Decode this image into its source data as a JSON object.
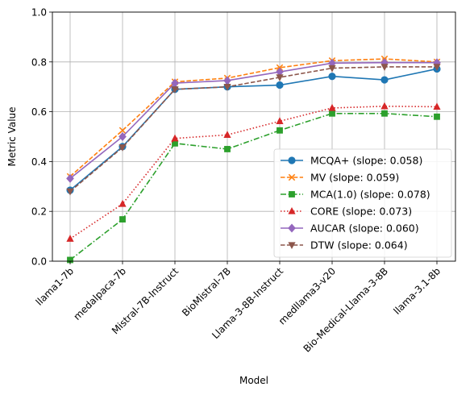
{
  "chart_data": {
    "type": "line",
    "xlabel": "Model",
    "ylabel": "Metric Value",
    "ylim": [
      0.0,
      1.0
    ],
    "yticks": [
      "0.0",
      "0.2",
      "0.4",
      "0.6",
      "0.8",
      "1.0"
    ],
    "grid": true,
    "legend_position": "bottom-right",
    "categories": [
      "llama1-7b",
      "medalpaca-7b",
      "Mistral-7B-Instruct",
      "BioMistral-7B",
      "Llama-3-8B-Instruct",
      "medllama3-v20",
      "Bio-Medical-Llama-3-8B",
      "llama-3.1-8b"
    ],
    "series": [
      {
        "name": "MCQA+ (slope: 0.058)",
        "color": "#1f77b4",
        "dash": "solid",
        "marker": "circle",
        "values": [
          0.285,
          0.46,
          0.69,
          0.7,
          0.707,
          0.742,
          0.728,
          0.772
        ]
      },
      {
        "name": "MV (slope: 0.059)",
        "color": "#ff7f0e",
        "dash": "dashed",
        "marker": "x",
        "values": [
          0.34,
          0.525,
          0.72,
          0.735,
          0.777,
          0.805,
          0.812,
          0.8
        ]
      },
      {
        "name": "MCA(1.0) (slope: 0.078)",
        "color": "#2ca02c",
        "dash": "dashdot",
        "marker": "square",
        "values": [
          0.005,
          0.168,
          0.473,
          0.45,
          0.525,
          0.593,
          0.593,
          0.58
        ]
      },
      {
        "name": "CORE (slope: 0.073)",
        "color": "#d62728",
        "dash": "dotted",
        "marker": "triangle-up",
        "values": [
          0.09,
          0.23,
          0.493,
          0.507,
          0.562,
          0.615,
          0.622,
          0.62
        ]
      },
      {
        "name": "AUCAR (slope: 0.060)",
        "color": "#9467bd",
        "dash": "solid",
        "marker": "diamond",
        "values": [
          0.332,
          0.5,
          0.715,
          0.725,
          0.76,
          0.795,
          0.797,
          0.797
        ]
      },
      {
        "name": "DTW (slope: 0.064)",
        "color": "#8c564b",
        "dash": "dashed",
        "marker": "triangle-down",
        "values": [
          0.28,
          0.457,
          0.69,
          0.7,
          0.738,
          0.775,
          0.78,
          0.78
        ]
      }
    ]
  }
}
